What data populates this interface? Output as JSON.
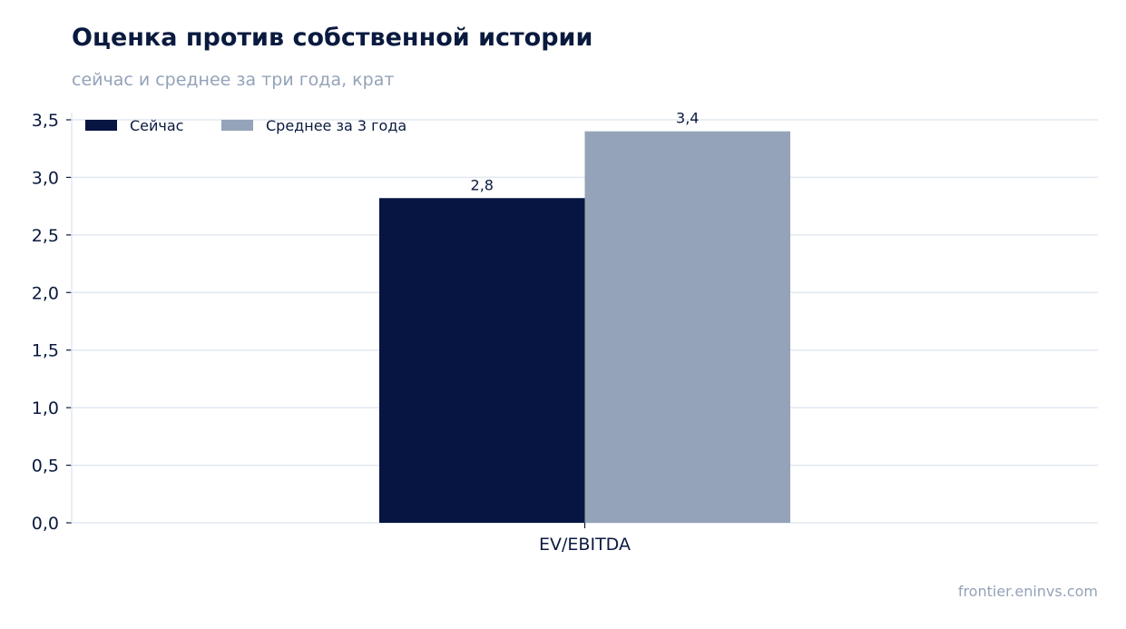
{
  "header": {
    "title": "Оценка против собственной истории",
    "subtitle": "сейчас и среднее за три года, крат"
  },
  "footer": {
    "source": "frontier.eninvs.com"
  },
  "chart_data": {
    "type": "bar",
    "title": "Оценка против собственной истории",
    "subtitle": "сейчас и среднее за три года, крат",
    "xlabel": "",
    "ylabel": "",
    "categories": [
      "EV/EBITDA"
    ],
    "series": [
      {
        "name": "Сейчас",
        "values": [
          2.82
        ],
        "label": "2,8",
        "color": "#061541"
      },
      {
        "name": "Среднее за 3 года",
        "values": [
          3.4
        ],
        "label": "3,4",
        "color": "#94a3b8"
      }
    ],
    "ylim": [
      0,
      3.5
    ],
    "yticks": [
      "0,0",
      "0,5",
      "1,0",
      "1,5",
      "2,0",
      "2,5",
      "3,0",
      "3,5"
    ],
    "grid": true,
    "legend_position": "top-left",
    "colors": {
      "grid": "#e2e8f0",
      "axis": "#0a1a3f",
      "text": "#0a1a3f",
      "muted": "#94a3b8"
    }
  }
}
